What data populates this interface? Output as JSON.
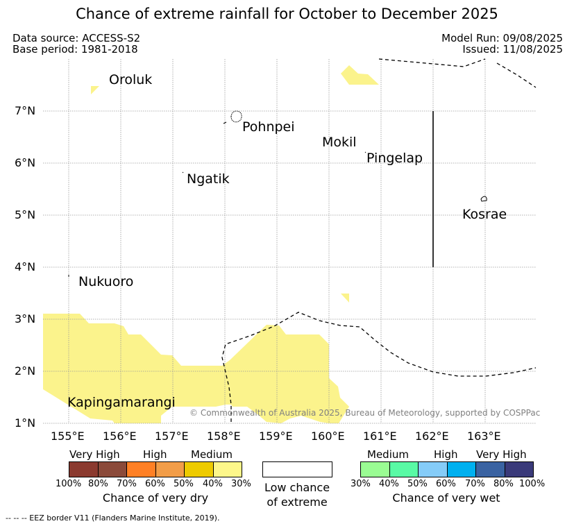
{
  "title": "Chance of extreme rainfall for October to December 2025",
  "meta": {
    "data_source": "Data source: ACCESS-S2",
    "base_period": "Base period: 1981-2018",
    "model_run": "Model Run: 09/08/2025",
    "issued": "Issued: 11/08/2025"
  },
  "map": {
    "lon_ticks": [
      "155°E",
      "156°E",
      "157°E",
      "158°E",
      "159°E",
      "160°E",
      "161°E",
      "162°E",
      "163°E"
    ],
    "lat_ticks": [
      "7°N",
      "6°N",
      "5°N",
      "4°N",
      "3°N",
      "2°N",
      "1°N"
    ],
    "places": {
      "oroluk": "Oroluk",
      "pohnpei": "Pohnpei",
      "mokil": "Mokil",
      "pingelap": "Pingelap",
      "ngatik": "Ngatik",
      "kosrae": "Kosrae",
      "nukuoro": "Nukuoro",
      "kapingamarangi": "Kapingamarangi"
    },
    "copyright": "© Commonwealth of Australia 2025, Bureau of Meteorology, supported by COSPPac",
    "shading_color": "#fbf38c"
  },
  "legend": {
    "dry": {
      "headers": [
        "Very High",
        "High",
        "Medium"
      ],
      "colors": [
        "#8b3a2f",
        "#8b4a3a",
        "#ff8025",
        "#f29d48",
        "#eecb00",
        "#fdf78a"
      ],
      "ticks": [
        "100%",
        "80%",
        "70%",
        "60%",
        "50%",
        "40%",
        "30%"
      ],
      "title": "Chance of very dry"
    },
    "low": {
      "line1": "Low chance",
      "line2": "of extreme"
    },
    "wet": {
      "headers": [
        "Medium",
        "High",
        "Very High"
      ],
      "colors": [
        "#9afc93",
        "#59faa5",
        "#85ccf8",
        "#00b0ef",
        "#3a63a2",
        "#3a3a7a"
      ],
      "ticks": [
        "30%",
        "40%",
        "50%",
        "60%",
        "70%",
        "80%",
        "100%"
      ],
      "title": "Chance of very wet"
    }
  },
  "footnote": "--  --  -- EEZ border V11 (Flanders Marine Institute, 2019)."
}
